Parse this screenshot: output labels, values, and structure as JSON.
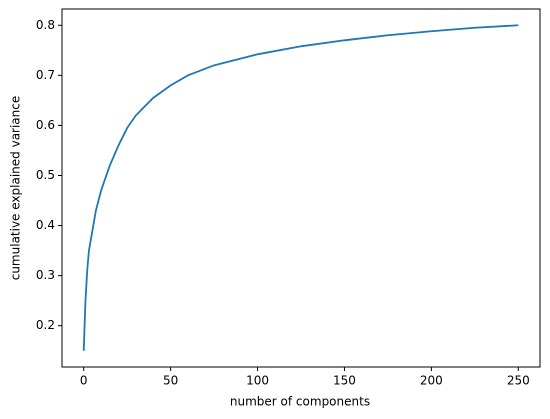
{
  "chart_data": {
    "type": "line",
    "xlabel": "number of components",
    "ylabel": "cumulative explained variance",
    "x": [
      0,
      1,
      2,
      3,
      5,
      7,
      10,
      15,
      20,
      25,
      30,
      40,
      50,
      60,
      75,
      100,
      125,
      150,
      175,
      200,
      225,
      250
    ],
    "series": [
      {
        "color": "#1f77b4",
        "values": [
          0.15,
          0.25,
          0.31,
          0.35,
          0.39,
          0.43,
          0.47,
          0.52,
          0.56,
          0.595,
          0.62,
          0.655,
          0.68,
          0.7,
          0.72,
          0.742,
          0.758,
          0.77,
          0.78,
          0.788,
          0.795,
          0.8
        ]
      }
    ],
    "xlim": [
      -12.5,
      262.5
    ],
    "ylim": [
      0.1175,
      0.8325
    ],
    "xticks": [
      0,
      50,
      100,
      150,
      200,
      250
    ],
    "yticks": [
      0.2,
      0.3,
      0.4,
      0.5,
      0.6,
      0.7,
      0.8
    ]
  }
}
